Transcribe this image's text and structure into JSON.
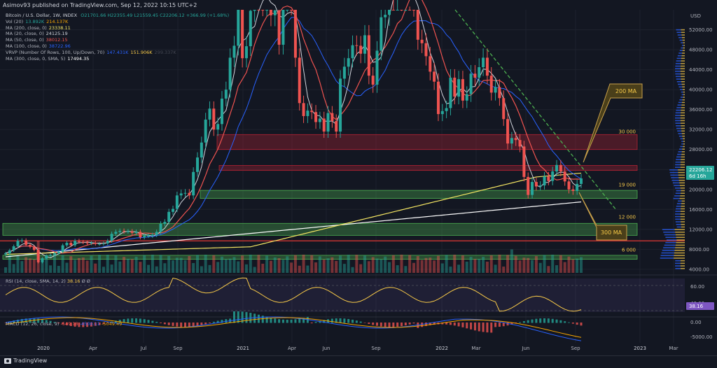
{
  "header": {
    "author_line": "Asimov93 published on TradingView.com, Sep 12, 2022 10:15 UTC+2"
  },
  "legend": {
    "symbol": "Bitcoin / U.S. Dollar, 1W, INDEX",
    "ohlc": "O21701.66 H22355.49 L21559.45 C22206.12 +366.99 (+1.68%)",
    "rows": [
      {
        "label": "Vol (20)",
        "values": [
          "13.892K",
          "214.137K"
        ],
        "colors": [
          "#26a69a",
          "#f7a600"
        ]
      },
      {
        "label": "MA (200, close, 0)",
        "values": [
          "23338.11"
        ],
        "colors": [
          "#f5e663"
        ]
      },
      {
        "label": "MA (20, close, 0)",
        "values": [
          "24125.19"
        ],
        "colors": [
          "#d1d4dc"
        ]
      },
      {
        "label": "MA (50, close, 0)",
        "values": [
          "38012.15"
        ],
        "colors": [
          "#ef5350"
        ]
      },
      {
        "label": "MA (100, close, 0)",
        "values": [
          "38722.96"
        ],
        "colors": [
          "#2962ff"
        ]
      },
      {
        "label": "VRVP (Number Of Rows, 100, Up/Down, 70)",
        "values": [
          "147.431K",
          "151.906K",
          "299.337K"
        ],
        "colors": [
          "#2962ff",
          "#f7c948",
          "#434651"
        ]
      },
      {
        "label": "MA (300, close, 0, SMA, 5)",
        "values": [
          "17494.35"
        ],
        "colors": [
          "#ffffff"
        ]
      }
    ]
  },
  "rsi_legend": {
    "label": "RSI (14, close, SMA, 14, 2)",
    "value": "38.16",
    "extra": "Ø Ø"
  },
  "macd_legend": {
    "label": "MACD (12, 26, close, 9)",
    "values": [
      "-549.18",
      "-4500.11",
      "-5049.49"
    ],
    "colors": [
      "#ef5350",
      "#2962ff",
      "#f7a600"
    ]
  },
  "footer": {
    "brand": "TradingView"
  },
  "chart_data": {
    "type": "candlestick",
    "title": "Bitcoin / U.S. Dollar, 1W, INDEX",
    "y_axis": {
      "ticks": [
        4000,
        8000,
        12000,
        16000,
        20000,
        24000,
        28000,
        32000,
        36000,
        40000,
        44000,
        48000,
        52000
      ],
      "unit_label": "USD",
      "ylim": [
        3000,
        56000
      ]
    },
    "x_axis": {
      "ticks": [
        "2020",
        "Apr",
        "Jul",
        "Sep",
        "2021",
        "Apr",
        "Jun",
        "Sep",
        "2022",
        "Mar",
        "Jun",
        "Sep",
        "2023",
        "Mar"
      ]
    },
    "last_price": {
      "value": "22206.12",
      "countdown": "6d 16h"
    },
    "level_labels": [
      "30 000",
      "19 000",
      "12 000",
      "6 000"
    ],
    "callouts": [
      "200 MA",
      "300 MA"
    ],
    "weekly_close_approx": [
      7200,
      7800,
      8600,
      9700,
      9800,
      8900,
      8500,
      7900,
      5400,
      6200,
      6700,
      6900,
      7200,
      7500,
      8800,
      9300,
      8800,
      9700,
      9500,
      9400,
      9200,
      9300,
      9100,
      9100,
      9200,
      9700,
      11100,
      11500,
      11700,
      11600,
      11600,
      11300,
      11500,
      10400,
      10700,
      10700,
      10900,
      11500,
      13100,
      13500,
      15500,
      16100,
      18800,
      19200,
      19300,
      18800,
      23500,
      26400,
      29400,
      34000,
      36200,
      32000,
      33100,
      38200,
      40000,
      46400,
      48800,
      57500,
      46300,
      48700,
      55800,
      59900,
      58400,
      57000,
      59600,
      54900,
      55900,
      49000,
      57800,
      58300,
      57200,
      46400,
      37300,
      34700,
      35800,
      35500,
      33500,
      34200,
      31600,
      35300,
      33700,
      31600,
      42200,
      44600,
      46300,
      48900,
      48800,
      47200,
      50900,
      42800,
      41000,
      47800,
      54500,
      55000,
      61600,
      61400,
      64200,
      58100,
      61400,
      59000,
      56900,
      50000,
      49300,
      46700,
      43600,
      41600,
      35100,
      35700,
      36300,
      42400,
      38600,
      42100,
      37800,
      39100,
      43200,
      42400,
      44500,
      46400,
      42800,
      39400,
      40500,
      38300,
      34100,
      29200,
      30300,
      29900,
      28600,
      22500,
      18900,
      21500,
      20600,
      20800,
      22600,
      21700,
      23600,
      24900,
      23600,
      21600,
      20000,
      19700,
      21100,
      22206
    ]
  }
}
